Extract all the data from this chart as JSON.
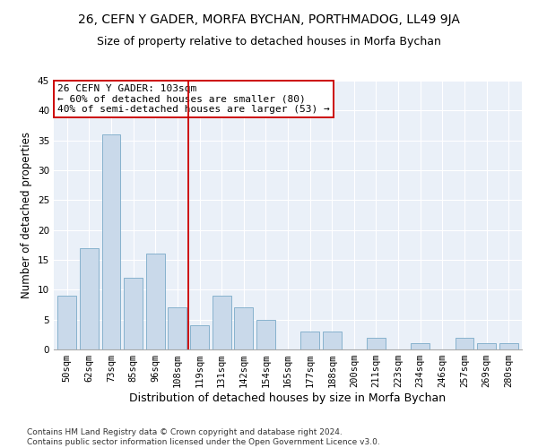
{
  "title": "26, CEFN Y GADER, MORFA BYCHAN, PORTHMADOG, LL49 9JA",
  "subtitle": "Size of property relative to detached houses in Morfa Bychan",
  "xlabel": "Distribution of detached houses by size in Morfa Bychan",
  "ylabel": "Number of detached properties",
  "categories": [
    "50sqm",
    "62sqm",
    "73sqm",
    "85sqm",
    "96sqm",
    "108sqm",
    "119sqm",
    "131sqm",
    "142sqm",
    "154sqm",
    "165sqm",
    "177sqm",
    "188sqm",
    "200sqm",
    "211sqm",
    "223sqm",
    "234sqm",
    "246sqm",
    "257sqm",
    "269sqm",
    "280sqm"
  ],
  "values": [
    9,
    17,
    36,
    12,
    16,
    7,
    4,
    9,
    7,
    5,
    0,
    3,
    3,
    0,
    2,
    0,
    1,
    0,
    2,
    1,
    1
  ],
  "bar_color": "#c9d9ea",
  "bar_edge_color": "#7aaac8",
  "vline_x": 5.5,
  "vline_color": "#cc0000",
  "annotation_line1": "26 CEFN Y GADER: 103sqm",
  "annotation_line2": "← 60% of detached houses are smaller (80)",
  "annotation_line3": "40% of semi-detached houses are larger (53) →",
  "annotation_box_color": "#cc0000",
  "ylim": [
    0,
    45
  ],
  "yticks": [
    0,
    5,
    10,
    15,
    20,
    25,
    30,
    35,
    40,
    45
  ],
  "bg_color": "#eaf0f8",
  "footer": "Contains HM Land Registry data © Crown copyright and database right 2024.\nContains public sector information licensed under the Open Government Licence v3.0.",
  "title_fontsize": 10,
  "subtitle_fontsize": 9,
  "xlabel_fontsize": 9,
  "ylabel_fontsize": 8.5,
  "tick_fontsize": 7.5,
  "annotation_fontsize": 8,
  "footer_fontsize": 6.5
}
